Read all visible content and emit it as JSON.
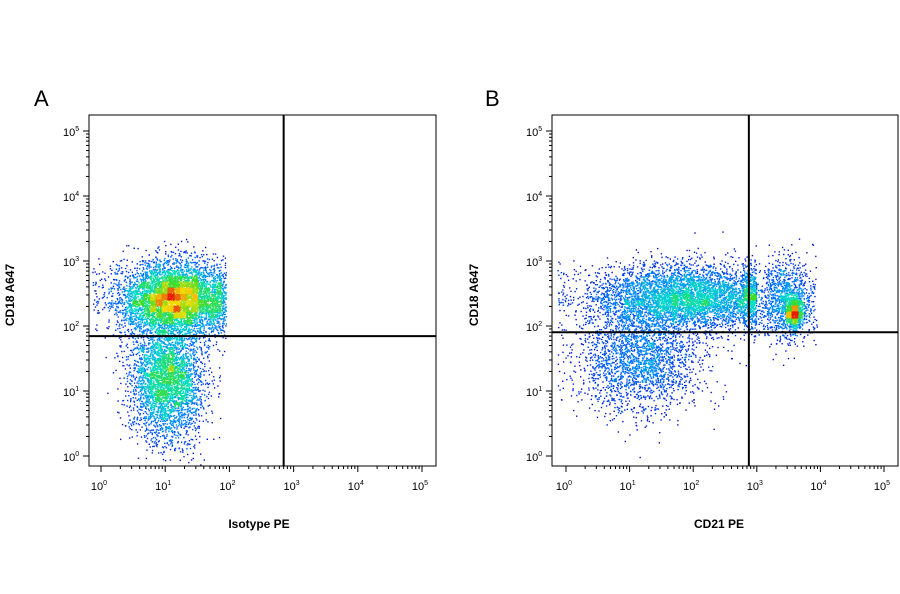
{
  "chart_data": [
    {
      "type": "scatter",
      "panel_label": "A",
      "xlabel": "Isotype PE",
      "ylabel": "CD18 A647",
      "xscale": "log",
      "yscale": "log",
      "xlim": [
        0.7,
        130000
      ],
      "ylim": [
        0.7,
        200000
      ],
      "x_ticks": [
        "10^0",
        "10^1",
        "10^2",
        "10^3",
        "10^4",
        "10^5"
      ],
      "y_ticks": [
        "10^0",
        "10^1",
        "10^2",
        "10^3",
        "10^4",
        "10^5"
      ],
      "gate": {
        "x": 700,
        "y": 70
      },
      "colormap": "density (blue → cyan → green → yellow → red)",
      "populations": [
        {
          "cx": 14,
          "cy": 260,
          "sx_decades": 0.45,
          "sy_decades": 0.28,
          "weight": 0.62,
          "xmax": 90,
          "ymax": 4000
        },
        {
          "cx": 11,
          "cy": 14,
          "sx_decades": 0.28,
          "sy_decades": 0.45,
          "weight": 0.38,
          "xmax": 90,
          "ymax": 200
        }
      ]
    },
    {
      "type": "scatter",
      "panel_label": "B",
      "xlabel": "CD21 PE",
      "ylabel": "CD18 A647",
      "xscale": "log",
      "yscale": "log",
      "xlim": [
        0.7,
        130000
      ],
      "ylim": [
        0.7,
        200000
      ],
      "x_ticks": [
        "10^0",
        "10^1",
        "10^2",
        "10^3",
        "10^4",
        "10^5"
      ],
      "y_ticks": [
        "10^0",
        "10^1",
        "10^2",
        "10^3",
        "10^4",
        "10^5"
      ],
      "gate": {
        "x": 750,
        "y": 80
      },
      "colormap": "density (blue → cyan → green → yellow → red)",
      "populations": [
        {
          "cx": 80,
          "cy": 270,
          "sx_decades": 0.75,
          "sy_decades": 0.25,
          "weight": 0.55,
          "xmax": 1000,
          "ymax": 5000
        },
        {
          "cx": 15,
          "cy": 30,
          "sx_decades": 0.5,
          "sy_decades": 0.4,
          "weight": 0.25,
          "xmax": 800,
          "ymax": 300
        },
        {
          "cx": 2800,
          "cy": 250,
          "sx_decades": 0.22,
          "sy_decades": 0.32,
          "weight": 0.13,
          "xmax": 9000,
          "ymax": 3000
        },
        {
          "cx": 4000,
          "cy": 160,
          "sx_decades": 0.07,
          "sy_decades": 0.13,
          "weight": 0.07,
          "xmax": 9000,
          "ymax": 2000
        }
      ]
    }
  ]
}
